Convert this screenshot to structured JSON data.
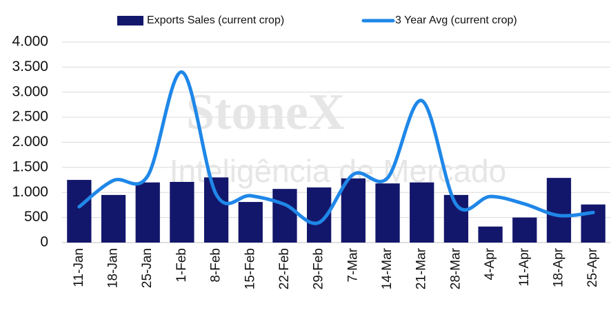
{
  "chart_data": {
    "type": "bar-line",
    "watermark": {
      "brand": "StoneX",
      "tagline": "Inteligência de Mercado"
    },
    "categories": [
      "11-Jan",
      "18-Jan",
      "25-Jan",
      "1-Feb",
      "8-Feb",
      "15-Feb",
      "22-Feb",
      "29-Feb",
      "7-Mar",
      "14-Mar",
      "21-Mar",
      "28-Mar",
      "4-Apr",
      "11-Apr",
      "18-Apr",
      "25-Apr"
    ],
    "series": [
      {
        "name": "Exports Sales (current crop)",
        "type": "bar",
        "color": "#13176b",
        "values": [
          1250,
          950,
          1200,
          1210,
          1300,
          810,
          1070,
          1100,
          1280,
          1180,
          1200,
          950,
          320,
          500,
          1290,
          760
        ]
      },
      {
        "name": "3 Year Avg (current crop)",
        "type": "line",
        "color": "#1f87e8",
        "values": [
          715,
          1240,
          1330,
          3400,
          960,
          935,
          760,
          400,
          1360,
          1290,
          2830,
          760,
          920,
          770,
          540,
          600
        ]
      }
    ],
    "ylim": [
      0,
      4000
    ],
    "yticks": [
      0,
      500,
      {
        "value": 1000,
        "label": "1.000"
      },
      {
        "value": 1500,
        "label": "1.500"
      },
      {
        "value": 2000,
        "label": "2.000"
      },
      {
        "value": 2500,
        "label": "2.500"
      },
      {
        "value": 3000,
        "label": "3.000"
      },
      {
        "value": 3500,
        "label": "3.500"
      },
      {
        "value": 4000,
        "label": "4.000"
      }
    ],
    "grid": true,
    "legend": "top"
  }
}
